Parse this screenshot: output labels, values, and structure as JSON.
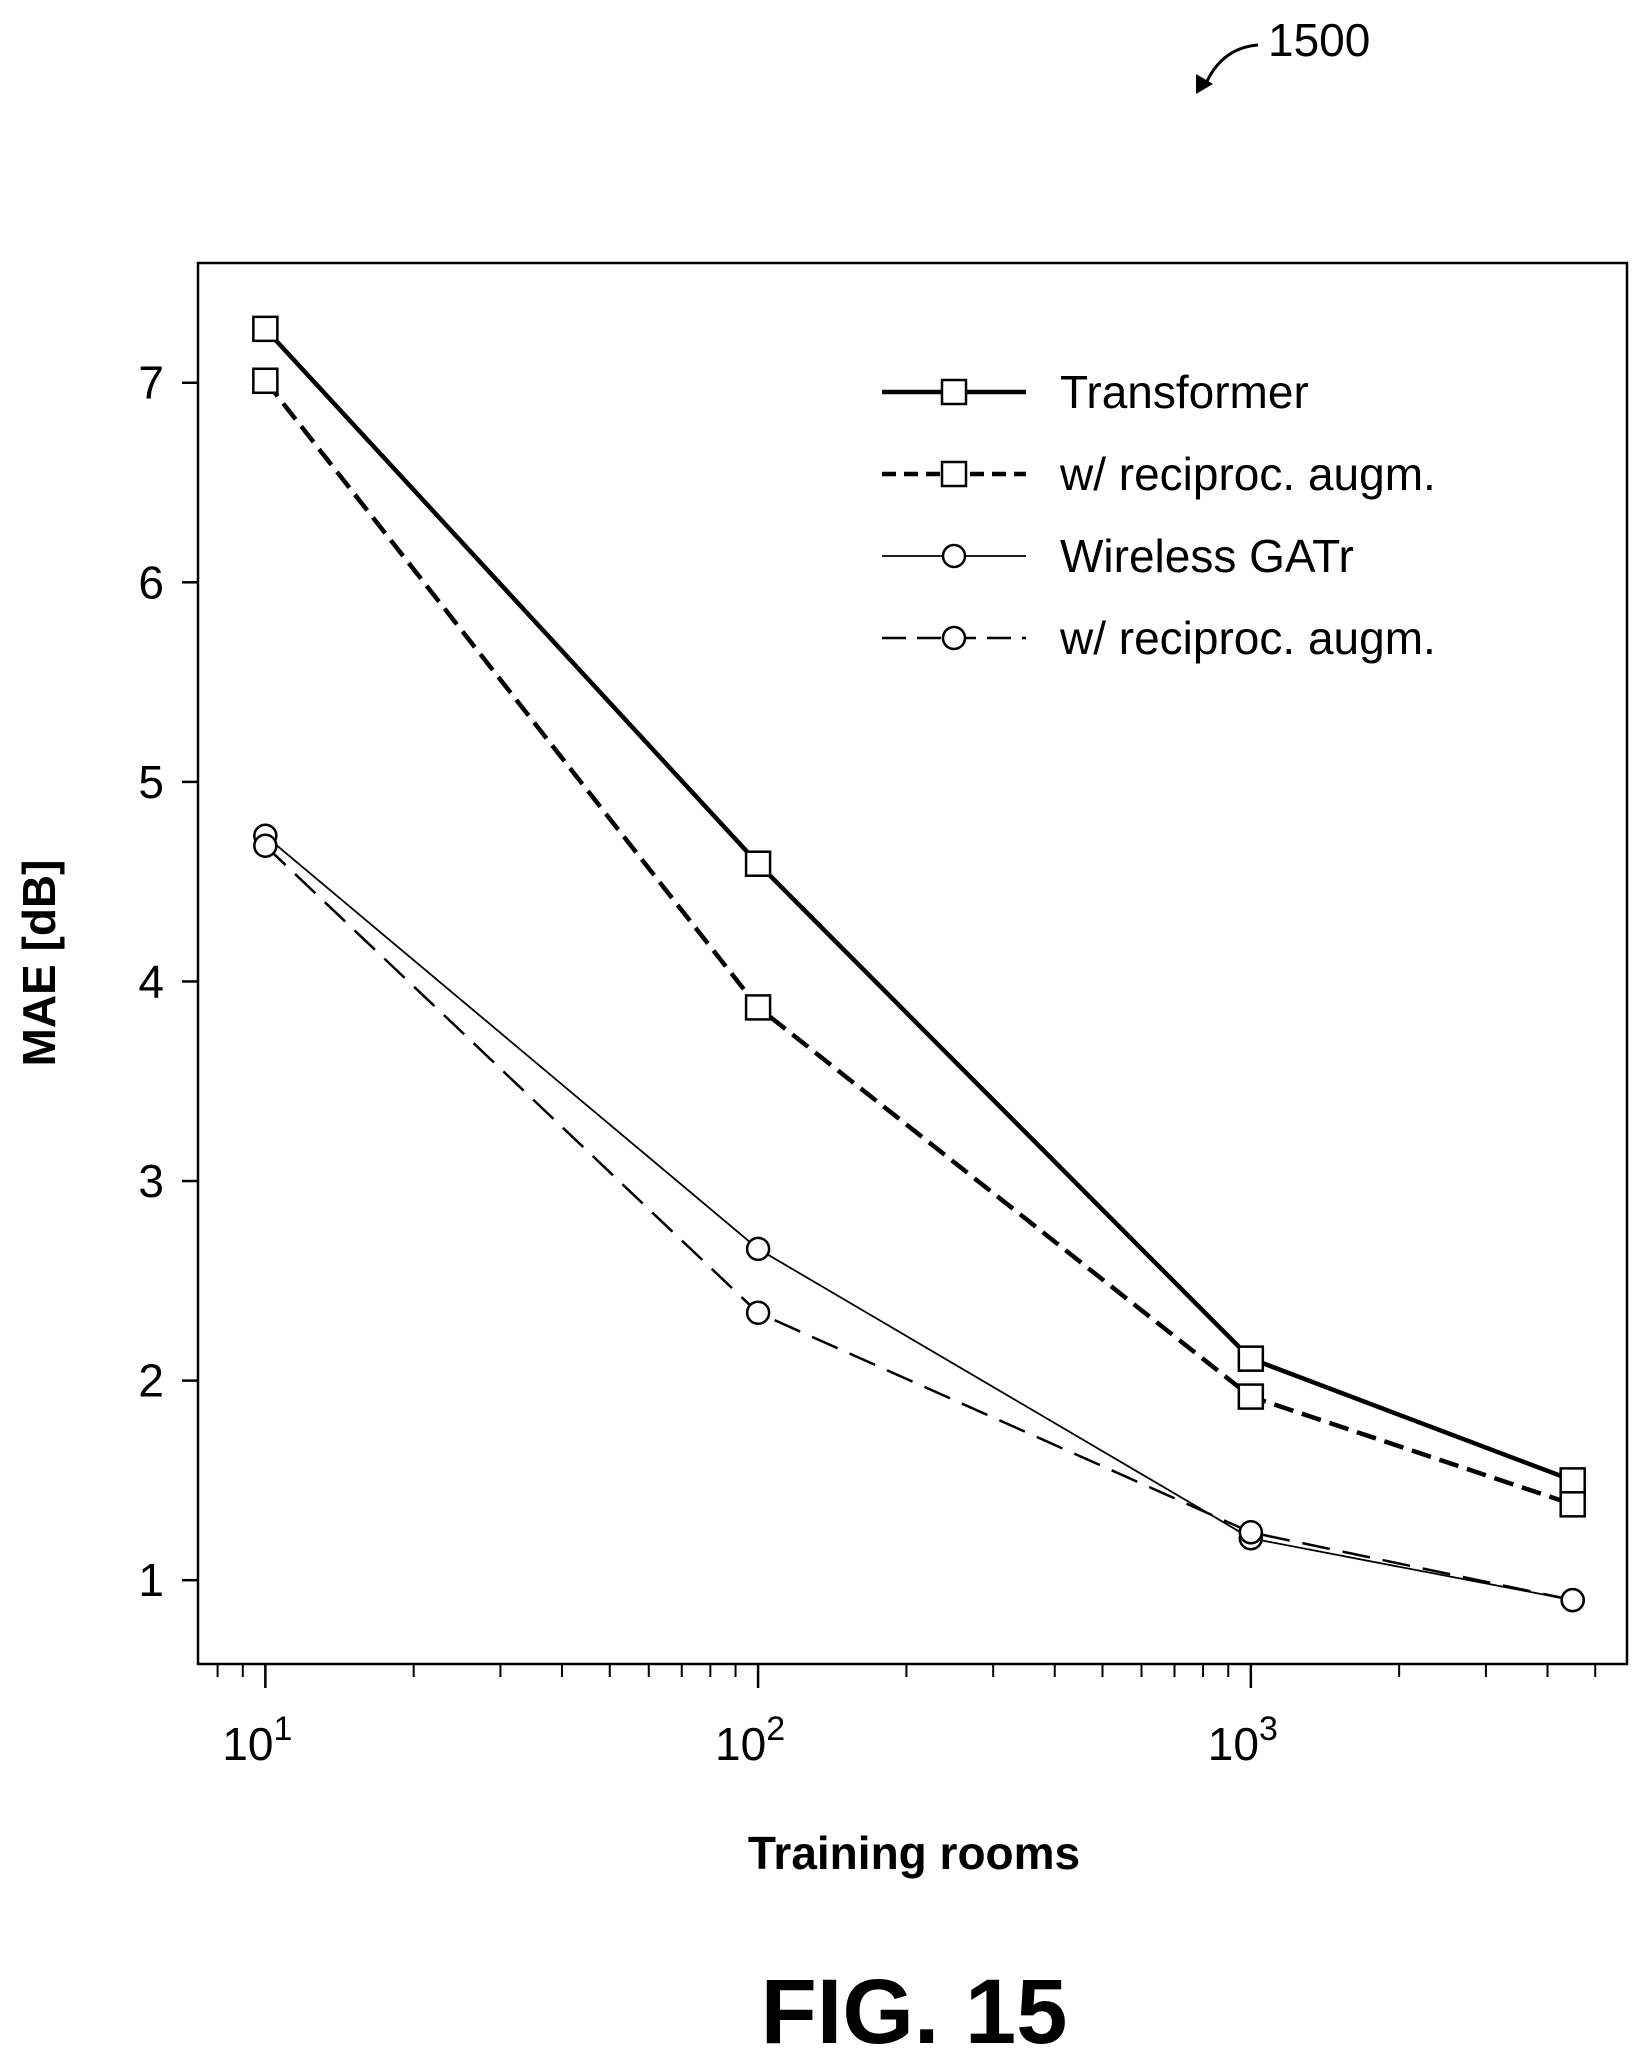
{
  "figure": {
    "reference_numeral": "1500",
    "caption": "FIG. 15"
  },
  "chart_data": {
    "type": "line",
    "xlabel": "Training rooms",
    "ylabel": "MAE [dB]",
    "xscale": "log",
    "xlim": [
      7.3,
      5800
    ],
    "ylim": [
      0.58,
      7.6
    ],
    "x_ticks": [
      {
        "value": 10,
        "base": "10",
        "exp": "1"
      },
      {
        "value": 100,
        "base": "10",
        "exp": "2"
      },
      {
        "value": 1000,
        "base": "10",
        "exp": "3"
      }
    ],
    "y_ticks": [
      1,
      2,
      3,
      4,
      5,
      6,
      7
    ],
    "grid": false,
    "legend_position": "top-right",
    "x": [
      10,
      100,
      1000,
      4500
    ],
    "series": [
      {
        "name": "Transformer",
        "values": [
          7.27,
          4.59,
          2.11,
          1.5
        ],
        "marker": "square",
        "line": "solid-thick"
      },
      {
        "name": "w/ reciproc. augm.",
        "values": [
          7.01,
          3.87,
          1.92,
          1.38
        ],
        "marker": "square",
        "line": "dashed-thick"
      },
      {
        "name": "Wireless GATr",
        "values": [
          4.73,
          2.66,
          1.21,
          0.9
        ],
        "marker": "circle",
        "line": "solid-thin"
      },
      {
        "name": "w/ reciproc. augm.",
        "values": [
          4.68,
          2.34,
          1.24,
          0.9
        ],
        "marker": "circle",
        "line": "dashed-thin"
      }
    ]
  }
}
